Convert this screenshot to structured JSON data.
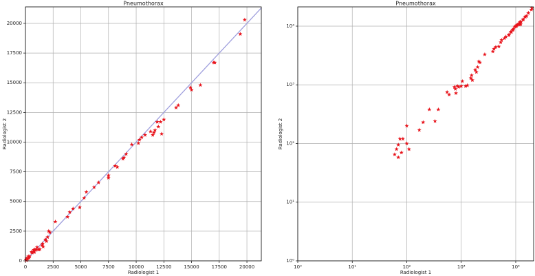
{
  "chart_data": [
    {
      "type": "scatter",
      "title": "Pneumothorax",
      "xlabel": "Radiologist 1",
      "ylabel": "Radiologist 2",
      "color": "#e8141c",
      "diagonal": true,
      "diagonal_color": "#9f9fdd",
      "grid": true,
      "log": false,
      "xlim": [
        0,
        21300
      ],
      "ylim": [
        0,
        21390
      ],
      "xticks": [
        0,
        2500,
        5000,
        7500,
        10000,
        12500,
        15000,
        17500,
        20000
      ],
      "yticks": [
        0,
        2500,
        5000,
        7500,
        10000,
        12500,
        15000,
        17500,
        20000
      ],
      "x": [
        60,
        65,
        70,
        70,
        75,
        80,
        85,
        100,
        100,
        110,
        170,
        200,
        260,
        330,
        380,
        550,
        600,
        750,
        780,
        800,
        850,
        900,
        1000,
        1050,
        1200,
        1300,
        1500,
        1550,
        1600,
        1800,
        1900,
        2000,
        2100,
        2200,
        2700,
        3800,
        4000,
        4300,
        4900,
        5300,
        5500,
        6200,
        6600,
        7500,
        7500,
        8100,
        8300,
        8800,
        8900,
        9100,
        9600,
        10200,
        10300,
        10500,
        10800,
        11300,
        11500,
        11600,
        11700,
        11900,
        12000,
        12200,
        12300,
        12500,
        13600,
        13800,
        14900,
        15000,
        15800,
        17000,
        17100,
        19400,
        19800
      ],
      "values": [
        65,
        80,
        95,
        58,
        120,
        70,
        120,
        200,
        100,
        80,
        170,
        230,
        380,
        240,
        380,
        750,
        680,
        920,
        850,
        720,
        950,
        920,
        950,
        1150,
        950,
        980,
        1300,
        1450,
        1200,
        1800,
        1650,
        2000,
        2500,
        2400,
        3300,
        3700,
        4100,
        4400,
        4500,
        5300,
        5800,
        6200,
        6600,
        7000,
        7200,
        8000,
        7900,
        8600,
        8700,
        9000,
        9800,
        9900,
        10200,
        10400,
        10600,
        10900,
        10600,
        10800,
        11000,
        11700,
        11300,
        11700,
        10700,
        11900,
        12900,
        13100,
        14600,
        14400,
        14800,
        16700,
        16700,
        19100,
        20300
      ]
    },
    {
      "type": "scatter",
      "title": "Pneumothorax",
      "xlabel": "Radiologist 1",
      "ylabel": "Radiologist 2",
      "color": "#e8141c",
      "diagonal": false,
      "grid": true,
      "log": true,
      "xlim": [
        1,
        21300
      ],
      "ylim": [
        1,
        21300
      ],
      "xticks": [
        {
          "value": 1,
          "label": "10⁰"
        },
        {
          "value": 10,
          "label": "10¹"
        },
        {
          "value": 100,
          "label": "10²"
        },
        {
          "value": 1000,
          "label": "10³"
        },
        {
          "value": 10000,
          "label": "10⁴"
        }
      ],
      "yticks": [
        {
          "value": 1,
          "label": "10⁰"
        },
        {
          "value": 10,
          "label": "10¹"
        },
        {
          "value": 100,
          "label": "10²"
        },
        {
          "value": 1000,
          "label": "10³"
        },
        {
          "value": 10000,
          "label": "10⁴"
        }
      ],
      "x": [
        60,
        65,
        70,
        70,
        75,
        80,
        85,
        100,
        100,
        110,
        170,
        200,
        260,
        330,
        380,
        550,
        600,
        750,
        780,
        800,
        850,
        900,
        1000,
        1050,
        1200,
        1300,
        1500,
        1550,
        1600,
        1800,
        1900,
        2000,
        2100,
        2200,
        2700,
        3800,
        4000,
        4300,
        4900,
        5300,
        5500,
        6200,
        6600,
        7500,
        7500,
        8100,
        8300,
        8800,
        8900,
        9100,
        9600,
        10200,
        10300,
        10500,
        10800,
        11300,
        11500,
        11600,
        11700,
        11900,
        12000,
        12200,
        12300,
        12500,
        13600,
        13800,
        14900,
        15000,
        15800,
        17000,
        17100,
        19400,
        19800
      ],
      "values": [
        65,
        80,
        95,
        58,
        120,
        70,
        120,
        200,
        100,
        80,
        170,
        230,
        380,
        240,
        380,
        750,
        680,
        920,
        850,
        720,
        950,
        920,
        950,
        1150,
        950,
        980,
        1300,
        1450,
        1200,
        1800,
        1650,
        2000,
        2500,
        2400,
        3300,
        3700,
        4100,
        4400,
        4500,
        5300,
        5800,
        6200,
        6600,
        7000,
        7200,
        8000,
        7900,
        8600,
        8700,
        9000,
        9800,
        9900,
        10200,
        10400,
        10600,
        10900,
        10600,
        10800,
        11000,
        11700,
        11300,
        11700,
        10700,
        11900,
        12900,
        13100,
        14600,
        14400,
        14800,
        16700,
        16700,
        19100,
        20300
      ]
    }
  ]
}
